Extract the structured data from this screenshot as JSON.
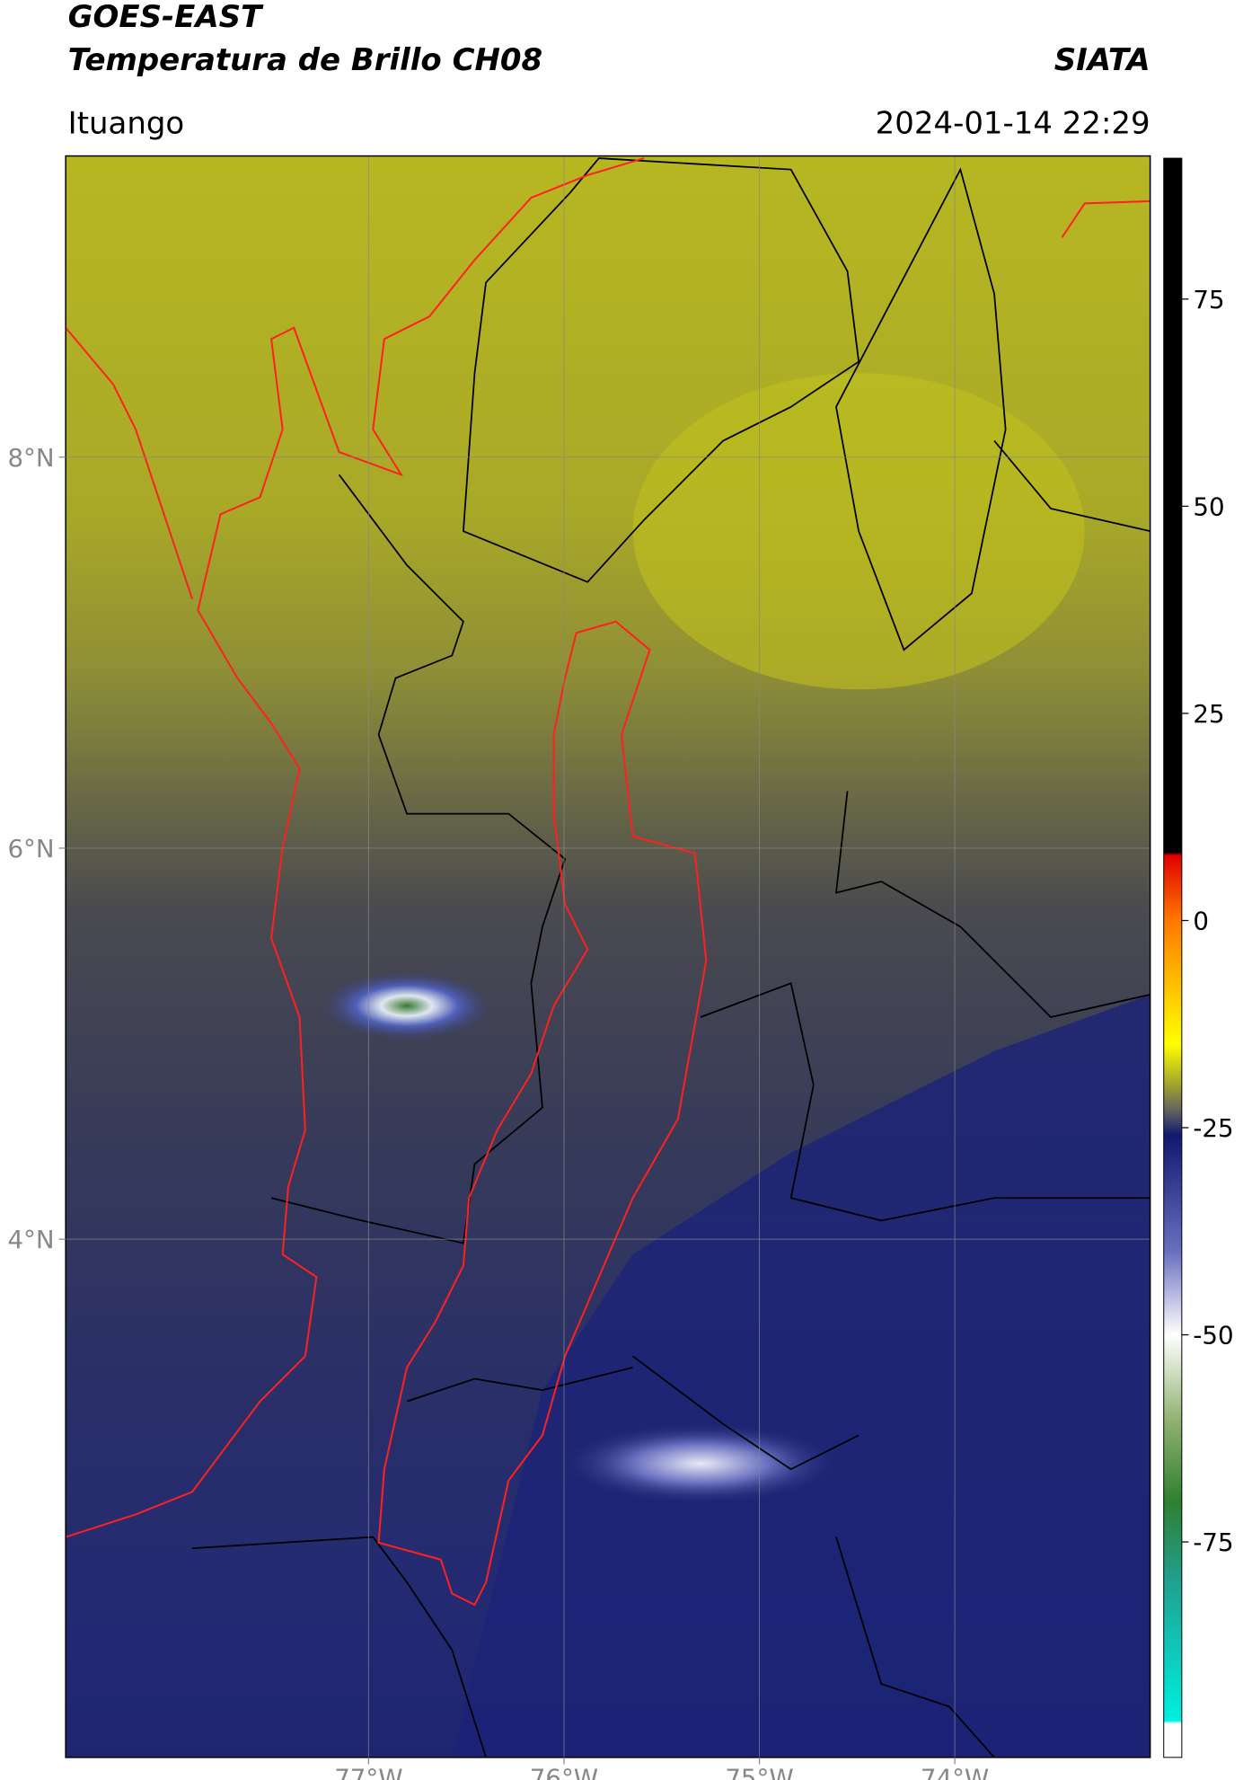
{
  "header": {
    "title_line1": "GOES-EAST",
    "title_line2": "Temperatura de Brillo CH08",
    "source": "SIATA",
    "location": "Ituango",
    "datetime": "2024-01-14 22:29"
  },
  "map": {
    "xlim": [
      -78.55,
      -73.0
    ],
    "ylim": [
      1.35,
      9.54
    ],
    "xticks": [
      {
        "value": -77,
        "label": "77°W"
      },
      {
        "value": -76,
        "label": "76°W"
      },
      {
        "value": -75,
        "label": "75°W"
      },
      {
        "value": -74,
        "label": "74°W"
      }
    ],
    "yticks": [
      {
        "value": 8,
        "label": "8°N"
      },
      {
        "value": 6,
        "label": "6°N"
      },
      {
        "value": 4,
        "label": "4°N"
      }
    ],
    "grid": true
  },
  "colorbar": {
    "lim": [
      -101,
      92
    ],
    "ticks": [
      75,
      50,
      25,
      0,
      -25,
      -50,
      -75
    ]
  }
}
